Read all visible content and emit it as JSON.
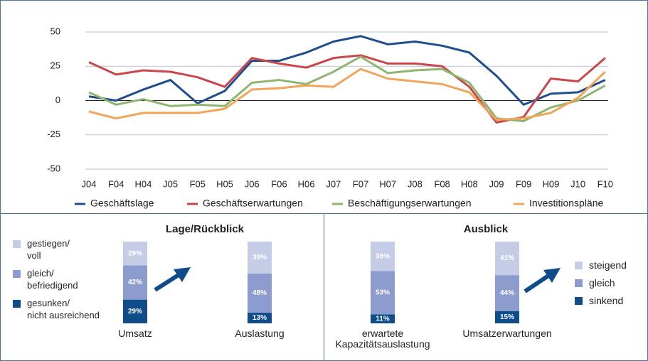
{
  "chart_data": [
    {
      "type": "line",
      "categories": [
        "J04",
        "F04",
        "H04",
        "J05",
        "F05",
        "H05",
        "J06",
        "F06",
        "H06",
        "J07",
        "F07",
        "H07",
        "J08",
        "F08",
        "H08",
        "J09",
        "F09",
        "H09",
        "J10",
        "F10"
      ],
      "ylim": [
        -50,
        50
      ],
      "yticks": [
        -50,
        -25,
        0,
        25,
        50
      ],
      "grid": true,
      "series": [
        {
          "name": "Geschäftslage",
          "color": "#1f4e8c",
          "values": [
            3,
            0,
            8,
            15,
            -2,
            7,
            29,
            29,
            35,
            43,
            47,
            41,
            43,
            40,
            35,
            18,
            -3,
            5,
            6,
            15
          ]
        },
        {
          "name": "Geschäftserwartungen",
          "color": "#c9474a",
          "values": [
            28,
            19,
            22,
            21,
            17,
            10,
            31,
            27,
            24,
            31,
            33,
            27,
            27,
            25,
            10,
            -16,
            -12,
            16,
            14,
            31
          ]
        },
        {
          "name": "Beschäftigungserwartungen",
          "color": "#8fb56f",
          "values": [
            6,
            -3,
            1,
            -4,
            -3,
            -4,
            13,
            15,
            12,
            21,
            32,
            20,
            22,
            23,
            13,
            -13,
            -15,
            -5,
            0,
            11
          ]
        },
        {
          "name": "Investitionspläne",
          "color": "#f0a55a",
          "values": [
            -8,
            -13,
            -9,
            -9,
            -9,
            -6,
            8,
            9,
            11,
            10,
            23,
            16,
            14,
            12,
            6,
            -14,
            -13,
            -9,
            2,
            21
          ]
        }
      ]
    },
    {
      "type": "stacked_bar",
      "title": "Lage/Rückblick",
      "categories": [
        "Umsatz",
        "Auslastung"
      ],
      "series": [
        {
          "name": "gestiegen/\nvoll",
          "color": "#c5cce6",
          "values": [
            29,
            39
          ],
          "value_labels": [
            "29%",
            "39%"
          ]
        },
        {
          "name": "gleich/\nbefriedigend",
          "color": "#8c9ccf",
          "values": [
            42,
            48
          ],
          "value_labels": [
            "42%",
            "48%"
          ]
        },
        {
          "name": "gesunken/\nnicht ausreichend",
          "color": "#0e4c8a",
          "values": [
            29,
            13
          ],
          "value_labels": [
            "29%",
            "13%"
          ]
        }
      ]
    },
    {
      "type": "stacked_bar",
      "title": "Ausblick",
      "categories": [
        "erwartete\nKapazitätsauslastung",
        "Umsatzerwartungen"
      ],
      "series": [
        {
          "name": "steigend",
          "color": "#c5cce6",
          "values": [
            36,
            41
          ],
          "value_labels": [
            "36%",
            "41%"
          ]
        },
        {
          "name": "gleich",
          "color": "#8c9ccf",
          "values": [
            53,
            44
          ],
          "value_labels": [
            "53%",
            "44%"
          ]
        },
        {
          "name": "sinkend",
          "color": "#0e4c8a",
          "values": [
            11,
            15
          ],
          "value_labels": [
            "11%",
            "15%"
          ]
        }
      ]
    }
  ]
}
